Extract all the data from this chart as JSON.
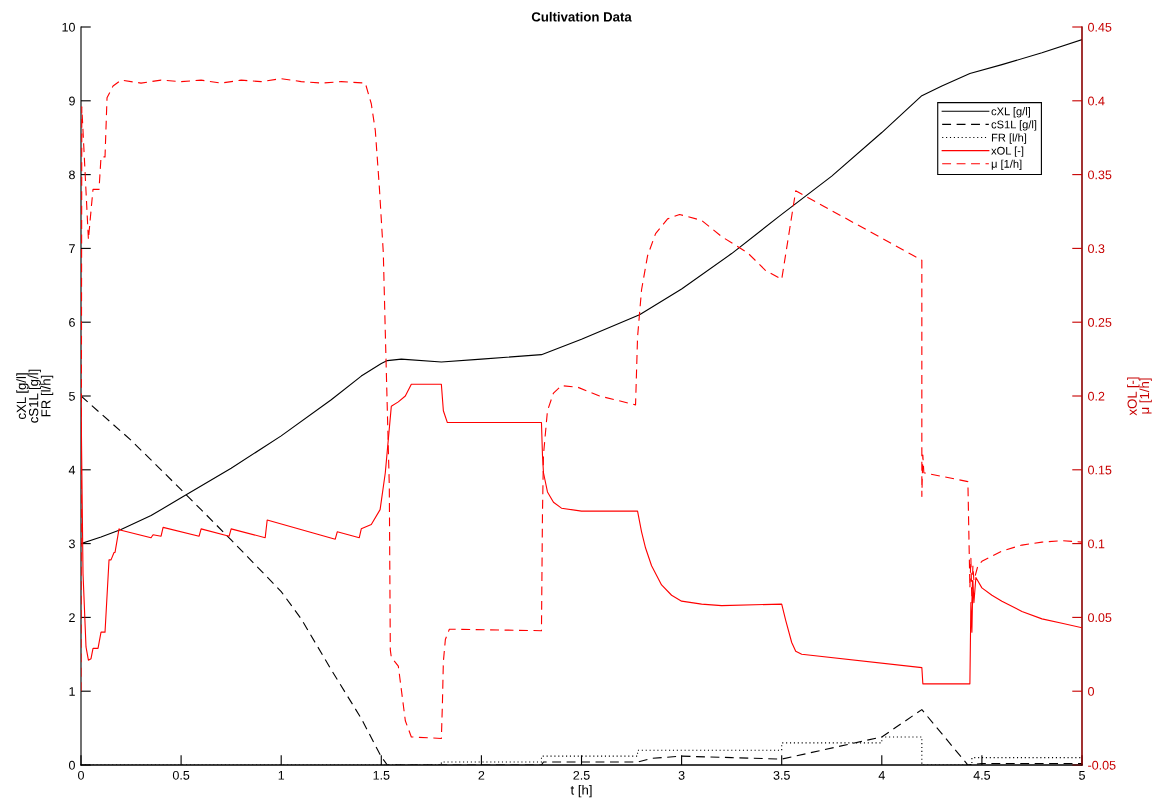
{
  "chart_data": {
    "type": "line",
    "title": "Cultivation Data",
    "xlabel": "t [h]",
    "ylabel": "cXL [g/l]\ncS1L [g/l]\nFR [l/h]",
    "y2label": "xOL [-]\nμ [1/h]",
    "xlim": [
      0,
      5
    ],
    "xticks": [
      0,
      0.5,
      1,
      1.5,
      2,
      2.5,
      3,
      3.5,
      4,
      4.5,
      5
    ],
    "ylim": [
      0,
      10
    ],
    "yticks": [
      0,
      1,
      2,
      3,
      4,
      5,
      6,
      7,
      8,
      9,
      10
    ],
    "y2lim": [
      -0.05,
      0.45
    ],
    "y2ticks": [
      -0.05,
      0,
      0.05,
      0.1,
      0.15,
      0.2,
      0.25,
      0.3,
      0.35,
      0.4,
      0.45
    ],
    "grid": false,
    "legend": "top right",
    "series": [
      {
        "name": "cXL [g/l]",
        "color": "#000000",
        "line_style": "solid",
        "x": [
          0,
          0.1,
          0.2,
          0.35,
          0.5,
          0.75,
          1.0,
          1.25,
          1.4,
          1.5,
          1.53,
          1.6,
          1.8,
          2.0,
          2.3,
          2.5,
          2.79,
          3.0,
          3.25,
          3.49,
          3.75,
          4.0,
          4.2,
          4.3,
          4.44,
          4.6,
          4.8,
          5.0
        ],
        "values": [
          3.0,
          3.09,
          3.19,
          3.38,
          3.62,
          4.02,
          4.46,
          4.95,
          5.27,
          5.44,
          5.48,
          5.5,
          5.46,
          5.5,
          5.56,
          5.77,
          6.1,
          6.45,
          6.93,
          7.44,
          7.98,
          8.57,
          9.07,
          9.2,
          9.37,
          9.49,
          9.65,
          9.83
        ]
      },
      {
        "name": "cS1L [g/l]",
        "color": "#000000",
        "line_style": "dashed",
        "x": [
          0,
          0.1,
          0.25,
          0.4,
          0.5,
          0.6,
          0.75,
          0.9,
          1.0,
          1.1,
          1.25,
          1.4,
          1.5,
          1.53,
          2.3,
          2.31,
          2.78,
          2.85,
          3.0,
          3.25,
          3.5,
          4.0,
          4.2,
          4.43,
          4.5,
          5.0
        ],
        "values": [
          5.0,
          4.76,
          4.4,
          4.0,
          3.73,
          3.46,
          3.05,
          2.63,
          2.35,
          1.98,
          1.29,
          0.63,
          0.11,
          0.0,
          0.0,
          0.04,
          0.04,
          0.09,
          0.12,
          0.1,
          0.08,
          0.38,
          0.75,
          0.0,
          0.02,
          0.02
        ]
      },
      {
        "name": "FR [l/h]",
        "color": "#000000",
        "line_style": "dotted",
        "type": "step",
        "x": [
          0,
          1.8,
          2.3,
          2.78,
          3.5,
          4.0,
          4.2,
          4.45,
          5.0
        ],
        "values": [
          0,
          0.04,
          0.12,
          0.2,
          0.3,
          0.38,
          0,
          0.1,
          0.1
        ]
      },
      {
        "name": "xOL [-]",
        "color": "#ff0000",
        "line_style": "solid",
        "axis": "y2",
        "x": [
          0,
          0.01,
          0.025,
          0.037,
          0.05,
          0.06,
          0.085,
          0.1,
          0.12,
          0.14,
          0.15,
          0.165,
          0.17,
          0.19,
          0.2,
          0.35,
          0.36,
          0.4,
          0.41,
          0.59,
          0.6,
          0.74,
          0.75,
          0.92,
          0.93,
          1.27,
          1.28,
          1.39,
          1.4,
          1.45,
          1.494,
          1.52,
          1.55,
          1.585,
          1.62,
          1.65,
          1.8,
          1.81,
          1.83,
          2.3,
          2.305,
          2.31,
          2.33,
          2.36,
          2.4,
          2.5,
          2.78,
          2.8,
          2.82,
          2.85,
          2.9,
          2.95,
          3.0,
          3.1,
          3.2,
          3.5,
          3.52,
          3.55,
          3.57,
          3.6,
          4.2,
          4.205,
          4.43,
          4.44,
          4.445,
          4.45,
          4.455,
          4.46,
          4.47,
          4.5,
          4.55,
          4.6,
          4.7,
          4.8,
          4.9,
          5.0
        ],
        "values": [
          0.2,
          0.08,
          0.03,
          0.021,
          0.022,
          0.029,
          0.029,
          0.04,
          0.04,
          0.089,
          0.089,
          0.094,
          0.094,
          0.11,
          0.109,
          0.104,
          0.106,
          0.105,
          0.111,
          0.105,
          0.11,
          0.105,
          0.11,
          0.104,
          0.116,
          0.103,
          0.108,
          0.104,
          0.11,
          0.113,
          0.123,
          0.148,
          0.193,
          0.196,
          0.2,
          0.208,
          0.208,
          0.19,
          0.182,
          0.182,
          0.16,
          0.148,
          0.135,
          0.128,
          0.124,
          0.122,
          0.122,
          0.108,
          0.097,
          0.085,
          0.072,
          0.065,
          0.061,
          0.059,
          0.058,
          0.059,
          0.048,
          0.033,
          0.027,
          0.025,
          0.016,
          0.005,
          0.005,
          0.005,
          0.06,
          0.04,
          0.075,
          0.06,
          0.077,
          0.07,
          0.065,
          0.061,
          0.054,
          0.049,
          0.046,
          0.043
        ]
      },
      {
        "name": "μ [1/h]",
        "color": "#ff0000",
        "line_style": "dashed",
        "axis": "y2",
        "x": [
          0,
          0.004,
          0.037,
          0.053,
          0.06,
          0.09,
          0.1,
          0.12,
          0.13,
          0.16,
          0.2,
          0.3,
          0.4,
          0.5,
          0.6,
          0.7,
          0.8,
          0.9,
          1.0,
          1.1,
          1.2,
          1.3,
          1.42,
          1.45,
          1.47,
          1.49,
          1.51,
          1.52,
          1.54,
          1.545,
          1.55,
          1.585,
          1.62,
          1.65,
          1.8,
          1.805,
          1.81,
          1.82,
          1.84,
          2.3,
          2.305,
          2.31,
          2.33,
          2.36,
          2.4,
          2.48,
          2.59,
          2.68,
          2.77,
          2.78,
          2.8,
          2.83,
          2.87,
          2.93,
          2.99,
          3.1,
          3.2,
          3.33,
          3.42,
          3.5,
          3.57,
          4.2,
          4.2,
          4.205,
          4.21,
          4.43,
          4.44,
          4.445,
          4.45,
          4.455,
          4.46,
          4.48,
          4.5,
          4.6,
          4.7,
          4.8,
          4.9,
          5.0
        ],
        "values": [
          0.0,
          0.396,
          0.306,
          0.33,
          0.34,
          0.34,
          0.362,
          0.362,
          0.402,
          0.41,
          0.414,
          0.412,
          0.414,
          0.413,
          0.414,
          0.412,
          0.414,
          0.413,
          0.415,
          0.413,
          0.412,
          0.413,
          0.412,
          0.398,
          0.38,
          0.342,
          0.297,
          0.243,
          0.139,
          0.028,
          0.023,
          0.017,
          -0.02,
          -0.031,
          -0.032,
          -0.01,
          0.02,
          0.035,
          0.042,
          0.041,
          0.12,
          0.16,
          0.19,
          0.202,
          0.207,
          0.206,
          0.2,
          0.197,
          0.194,
          0.24,
          0.272,
          0.295,
          0.31,
          0.32,
          0.323,
          0.319,
          0.308,
          0.297,
          0.285,
          0.279,
          0.339,
          0.292,
          0.132,
          0.16,
          0.148,
          0.142,
          0.07,
          0.09,
          0.06,
          0.085,
          0.075,
          0.085,
          0.088,
          0.095,
          0.099,
          0.101,
          0.102,
          0.101
        ]
      }
    ]
  }
}
